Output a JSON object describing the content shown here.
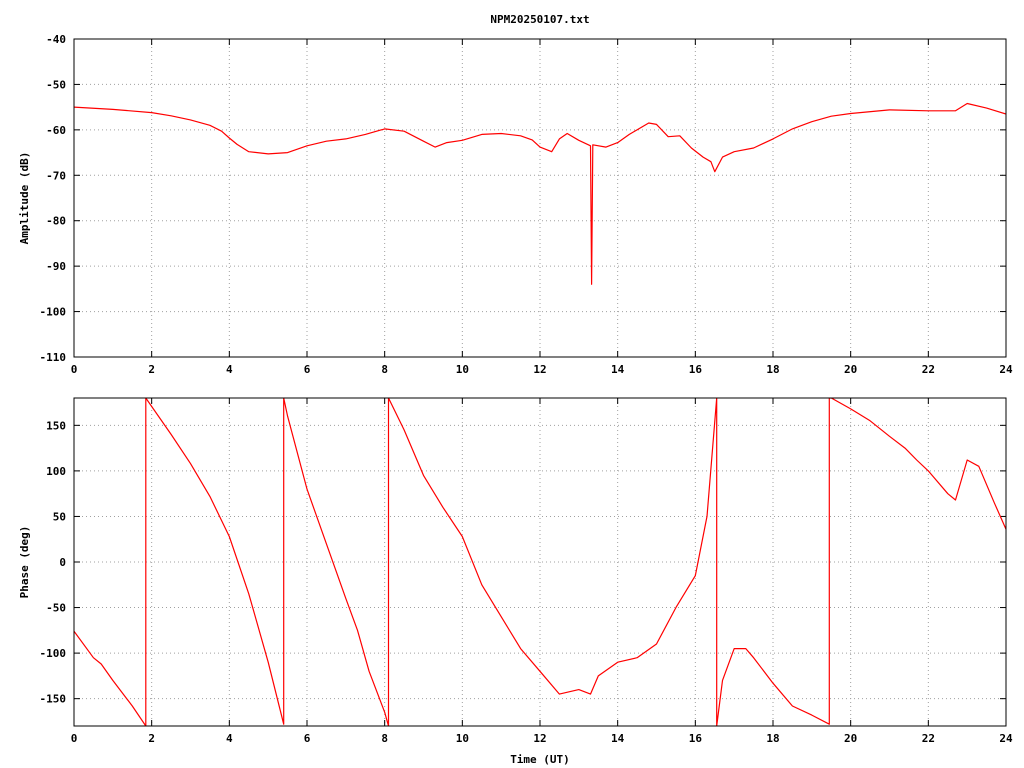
{
  "chart_data": [
    {
      "type": "line",
      "title": "NPM20250107.txt",
      "xlabel": "",
      "ylabel": "Amplitude (dB)",
      "xlim": [
        0,
        24
      ],
      "ylim": [
        -110,
        -40
      ],
      "xticks": [
        "0",
        "2",
        "4",
        "6",
        "8",
        "10",
        "12",
        "14",
        "16",
        "18",
        "20",
        "22",
        "24"
      ],
      "yticks": [
        "-40",
        "-50",
        "-60",
        "-70",
        "-80",
        "-90",
        "-100",
        "-110"
      ],
      "grid": true,
      "line_color": "#ff0000",
      "series": [
        {
          "points": [
            [
              0,
              -55.0
            ],
            [
              1.0,
              -55.5
            ],
            [
              2.0,
              -56.2
            ],
            [
              2.5,
              -56.9
            ],
            [
              3.0,
              -57.8
            ],
            [
              3.5,
              -59.0
            ],
            [
              3.8,
              -60.3
            ],
            [
              4.0,
              -61.8
            ],
            [
              4.2,
              -63.2
            ],
            [
              4.5,
              -64.8
            ],
            [
              5.0,
              -65.3
            ],
            [
              5.5,
              -65.0
            ],
            [
              6.0,
              -63.5
            ],
            [
              6.5,
              -62.5
            ],
            [
              7.0,
              -62.0
            ],
            [
              7.5,
              -61.0
            ],
            [
              8.0,
              -59.8
            ],
            [
              8.5,
              -60.3
            ],
            [
              9.0,
              -62.5
            ],
            [
              9.3,
              -63.8
            ],
            [
              9.6,
              -62.8
            ],
            [
              10.0,
              -62.3
            ],
            [
              10.5,
              -61.0
            ],
            [
              11.0,
              -60.8
            ],
            [
              11.5,
              -61.3
            ],
            [
              11.8,
              -62.2
            ],
            [
              12.0,
              -63.8
            ],
            [
              12.3,
              -64.8
            ],
            [
              12.5,
              -62.0
            ],
            [
              12.7,
              -60.8
            ],
            [
              13.0,
              -62.3
            ],
            [
              13.3,
              -63.5
            ],
            [
              13.33,
              -94.0
            ],
            [
              13.36,
              -63.3
            ],
            [
              13.7,
              -63.8
            ],
            [
              14.0,
              -62.8
            ],
            [
              14.3,
              -61.0
            ],
            [
              14.8,
              -58.5
            ],
            [
              15.0,
              -58.8
            ],
            [
              15.3,
              -61.5
            ],
            [
              15.6,
              -61.3
            ],
            [
              15.9,
              -64.0
            ],
            [
              16.2,
              -66.0
            ],
            [
              16.4,
              -67.0
            ],
            [
              16.5,
              -69.2
            ],
            [
              16.7,
              -66.0
            ],
            [
              17.0,
              -64.8
            ],
            [
              17.5,
              -64.0
            ],
            [
              18.0,
              -62.0
            ],
            [
              18.5,
              -59.8
            ],
            [
              19.0,
              -58.2
            ],
            [
              19.5,
              -57.0
            ],
            [
              20.0,
              -56.4
            ],
            [
              21.0,
              -55.6
            ],
            [
              22.0,
              -55.8
            ],
            [
              22.7,
              -55.8
            ],
            [
              23.0,
              -54.2
            ],
            [
              23.5,
              -55.2
            ],
            [
              24.0,
              -56.5
            ]
          ]
        }
      ]
    },
    {
      "type": "line",
      "title": "",
      "xlabel": "Time (UT)",
      "ylabel": "Phase (deg)",
      "xlim": [
        0,
        24
      ],
      "ylim": [
        -180,
        180
      ],
      "xticks": [
        "0",
        "2",
        "4",
        "6",
        "8",
        "10",
        "12",
        "14",
        "16",
        "18",
        "20",
        "22",
        "24"
      ],
      "yticks": [
        "150",
        "100",
        "50",
        "0",
        "-50",
        "-100",
        "-150"
      ],
      "grid": true,
      "line_color": "#ff0000",
      "series": [
        {
          "points": [
            [
              0,
              -76
            ],
            [
              0.5,
              -105
            ],
            [
              0.7,
              -112
            ],
            [
              1.0,
              -130
            ],
            [
              1.5,
              -158
            ],
            [
              1.85,
              -180
            ],
            [
              1.85,
              180
            ],
            [
              2.5,
              140
            ],
            [
              3.0,
              108
            ],
            [
              3.5,
              72
            ],
            [
              4.0,
              28
            ],
            [
              4.5,
              -35
            ],
            [
              5.0,
              -110
            ],
            [
              5.4,
              -178
            ],
            [
              5.4,
              180
            ],
            [
              5.5,
              160
            ],
            [
              6.0,
              80
            ],
            [
              6.5,
              20
            ],
            [
              7.0,
              -40
            ],
            [
              7.3,
              -75
            ],
            [
              7.6,
              -120
            ],
            [
              8.0,
              -165
            ],
            [
              8.1,
              -180
            ],
            [
              8.1,
              180
            ],
            [
              8.5,
              145
            ],
            [
              9.0,
              95
            ],
            [
              9.5,
              60
            ],
            [
              10.0,
              28
            ],
            [
              10.5,
              -25
            ],
            [
              11.0,
              -60
            ],
            [
              11.5,
              -95
            ],
            [
              12.0,
              -120
            ],
            [
              12.5,
              -145
            ],
            [
              13.0,
              -140
            ],
            [
              13.3,
              -145
            ],
            [
              13.5,
              -125
            ],
            [
              14.0,
              -110
            ],
            [
              14.5,
              -105
            ],
            [
              15.0,
              -90
            ],
            [
              15.5,
              -50
            ],
            [
              16.0,
              -15
            ],
            [
              16.3,
              50
            ],
            [
              16.55,
              180
            ],
            [
              16.55,
              -180
            ],
            [
              16.7,
              -130
            ],
            [
              17.0,
              -95
            ],
            [
              17.3,
              -95
            ],
            [
              17.5,
              -105
            ],
            [
              18.0,
              -133
            ],
            [
              18.5,
              -158
            ],
            [
              19.0,
              -168
            ],
            [
              19.45,
              -178
            ],
            [
              19.45,
              180
            ],
            [
              19.5,
              180
            ],
            [
              20.0,
              168
            ],
            [
              20.5,
              155
            ],
            [
              21.0,
              138
            ],
            [
              21.4,
              125
            ],
            [
              21.7,
              112
            ],
            [
              22.0,
              100
            ],
            [
              22.5,
              75
            ],
            [
              22.7,
              68
            ],
            [
              23.0,
              112
            ],
            [
              23.3,
              105
            ],
            [
              23.7,
              65
            ],
            [
              24.0,
              36
            ]
          ]
        }
      ]
    }
  ]
}
